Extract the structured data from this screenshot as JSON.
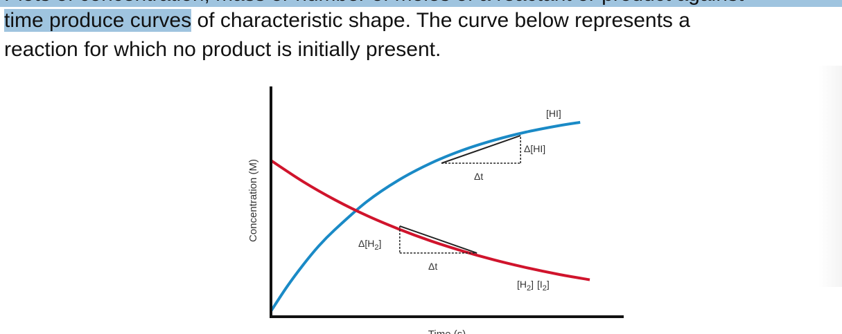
{
  "text": {
    "line1": "Plots of concentration, mass or number of moles of a reactant or product against",
    "line2_highlight": "time produce curves",
    "line2_rest": " of characteristic shape. The curve below represents a",
    "line3": "reaction for which no product is initially present."
  },
  "colors": {
    "highlight": "#9fc4df",
    "product": "#1a8ac6",
    "reactant": "#d0142c",
    "tangent": "#222222"
  },
  "chart_data": {
    "type": "line",
    "title": "",
    "xlabel": "Time (s)",
    "ylabel": "Concentration (M)",
    "xlim": [
      0,
      10
    ],
    "ylim": [
      0,
      10
    ],
    "grid": false,
    "series": [
      {
        "name": "[HI]",
        "color": "#1a8ac6",
        "x": [
          0,
          0.5,
          1,
          1.5,
          2,
          3,
          4,
          5,
          6,
          7,
          8,
          9,
          9.7
        ],
        "y": [
          0.27,
          1.44,
          2.48,
          3.41,
          4.19,
          5.54,
          6.58,
          7.39,
          8.02,
          8.51,
          8.9,
          9.2,
          9.37
        ]
      },
      {
        "name": "[H2] [I2]",
        "color": "#d0142c",
        "x": [
          0,
          1,
          2,
          3,
          4,
          5,
          6,
          7,
          8,
          9,
          10
        ],
        "y": [
          7.53,
          6.52,
          5.64,
          4.88,
          4.23,
          3.66,
          3.17,
          2.74,
          2.37,
          2.05,
          1.78
        ]
      }
    ],
    "labels": {
      "hi": "[HI]",
      "h2": {
        "pre": "[H",
        "sub": "2",
        "post": "]"
      },
      "i2": {
        "pre": "[I",
        "sub": "2",
        "post": "]"
      },
      "delta_hi": "Δ[HI]",
      "delta_h2": {
        "pre": "Δ[H",
        "sub": "2",
        "post": "]"
      },
      "delta_t": "Δt"
    },
    "tangents": [
      {
        "series": "[HI]",
        "t1": 5.35,
        "c1": 7.4,
        "t2": 7.83,
        "c2": 8.73
      },
      {
        "series": "[H2] [I2]",
        "t1": 4.04,
        "c1": 4.37,
        "t2": 6.46,
        "c2": 3.07
      }
    ]
  }
}
